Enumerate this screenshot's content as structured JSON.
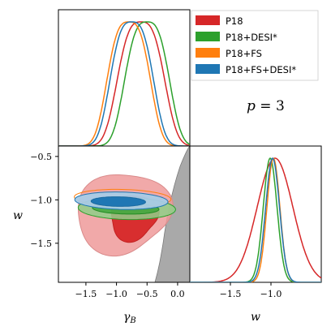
{
  "colors": {
    "P18": "#d62728",
    "P18+DESI*": "#2ca02c",
    "P18+FS": "#ff7f0e",
    "P18+FS+DESI*": "#1f77b4",
    "excluded": "#a9a9a9"
  },
  "legend": {
    "placement": "top-right",
    "entries": [
      {
        "label": "P18",
        "color": "#d62728"
      },
      {
        "label": "P18+DESI*",
        "color": "#2ca02c"
      },
      {
        "label": "P18+FS",
        "color": "#ff7f0e"
      },
      {
        "label": "P18+FS+DESI*",
        "color": "#1f77b4"
      }
    ]
  },
  "annotation": {
    "text": "p = 3"
  },
  "chart_data": [
    {
      "type": "line",
      "panel": "gamma_B marginal",
      "xlim": [
        -1.95,
        0.2
      ],
      "series": [
        {
          "name": "P18",
          "peak": -0.6,
          "width": 0.36
        },
        {
          "name": "P18+DESI*",
          "peak": -0.5,
          "width": 0.34
        },
        {
          "name": "P18+FS",
          "peak": -0.8,
          "width": 0.33
        },
        {
          "name": "P18+FS+DESI*",
          "peak": -0.75,
          "width": 0.33
        }
      ]
    },
    {
      "type": "contour",
      "panel": "gamma_B vs w",
      "xlabel": "γ_B",
      "ylabel": "w",
      "xlim": [
        -1.95,
        0.2
      ],
      "ylim": [
        -1.95,
        -0.38
      ],
      "xticks": [
        "−1.5",
        "−1.0",
        "−0.5",
        "0.0"
      ],
      "yticks": [
        "−0.5",
        "−1.0",
        "−1.5"
      ],
      "series": [
        {
          "name": "P18",
          "center": [
            -0.9,
            -1.2
          ],
          "levels": [
            "68%",
            "95%"
          ]
        },
        {
          "name": "P18+DESI*",
          "center": [
            -0.85,
            -1.1
          ],
          "levels": [
            "68%",
            "95%"
          ]
        },
        {
          "name": "P18+FS",
          "center": [
            -0.9,
            -0.97
          ],
          "levels": [
            "68%",
            "95%"
          ]
        },
        {
          "name": "P18+FS+DESI*",
          "center": [
            -0.9,
            -1.01
          ],
          "levels": [
            "68%",
            "95%"
          ]
        }
      ]
    },
    {
      "type": "line",
      "panel": "w marginal",
      "xlabel": "w",
      "xlim": [
        -2.0,
        -0.38
      ],
      "xticks": [
        "−1.5",
        "−1.0"
      ],
      "series": [
        {
          "name": "P18",
          "peak": -0.95,
          "width": 0.22
        },
        {
          "name": "P18+DESI*",
          "peak": -1.01,
          "width": 0.085
        },
        {
          "name": "P18+FS",
          "peak": -0.97,
          "width": 0.08
        },
        {
          "name": "P18+FS+DESI*",
          "peak": -0.98,
          "width": 0.085
        }
      ]
    }
  ]
}
